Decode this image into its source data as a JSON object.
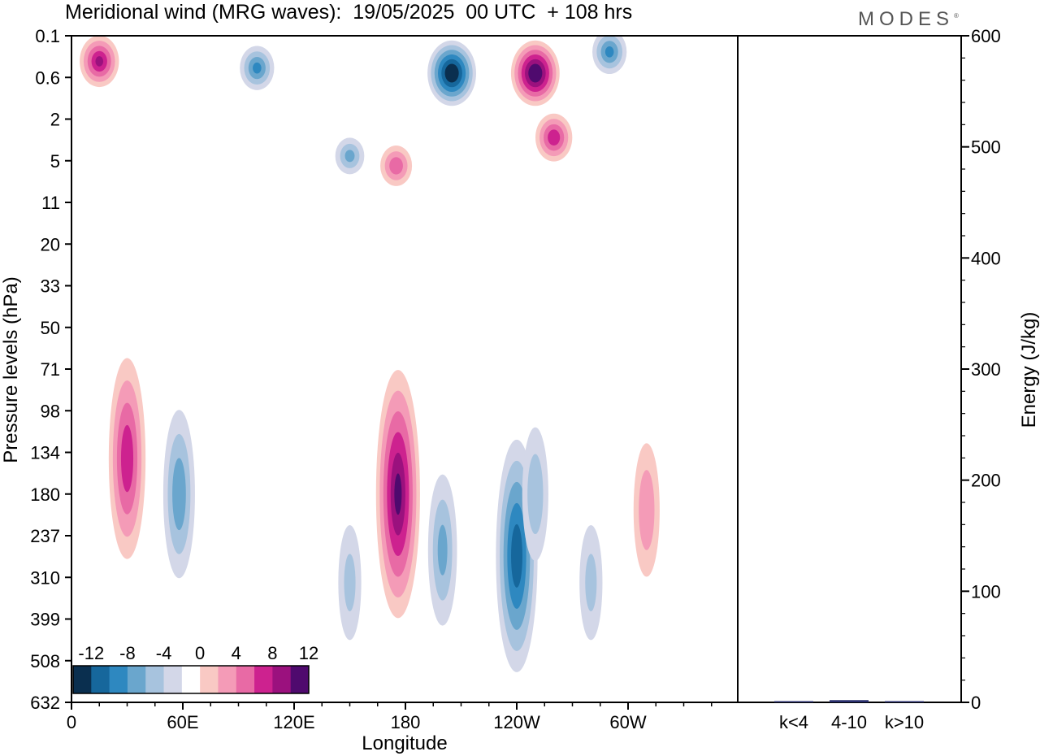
{
  "header": {
    "title": "Meridional wind (MRG waves):  19/05/2025  00 UTC  + 108 hrs",
    "logo": "MODES"
  },
  "colors": {
    "negative": [
      "#0a2f4f",
      "#16679c",
      "#2e88c0",
      "#6aa6cd",
      "#a7c3de",
      "#d3d7e8"
    ],
    "zero": "#ffffff",
    "positive": [
      "#f9c9c4",
      "#f49bb7",
      "#e86aa5",
      "#cd228f",
      "#9b117e",
      "#4f0a6e"
    ]
  },
  "chart_data": [
    {
      "type": "heatmap",
      "title": "Meridional wind (MRG waves):  19/05/2025  00 UTC  + 108 hrs",
      "xlabel": "Longitude",
      "ylabel": "Pressure levels (hPa)",
      "x_ticks": [
        "0",
        "60E",
        "120E",
        "180",
        "120W",
        "60W"
      ],
      "y_ticks": [
        "0.1",
        "0.6",
        "2",
        "5",
        "11",
        "20",
        "33",
        "50",
        "71",
        "98",
        "134",
        "180",
        "237",
        "310",
        "399",
        "508",
        "632"
      ],
      "colorbar": {
        "labels": [
          "-12",
          "-8",
          "-4",
          "0",
          "4",
          "8",
          "12"
        ],
        "levels": [
          -14,
          -12,
          -10,
          -8,
          -6,
          -4,
          -2,
          2,
          4,
          6,
          8,
          10,
          12,
          14
        ]
      },
      "features": [
        {
          "lon": 15,
          "plev": 0.3,
          "value": 10
        },
        {
          "lon": 100,
          "plev": 0.4,
          "value": -8
        },
        {
          "lon": 205,
          "plev": 0.5,
          "value": -14
        },
        {
          "lon": 250,
          "plev": 0.5,
          "value": 14
        },
        {
          "lon": 290,
          "plev": 0.2,
          "value": -8
        },
        {
          "lon": 260,
          "plev": 3,
          "value": 9
        },
        {
          "lon": 150,
          "plev": 4.5,
          "value": -6
        },
        {
          "lon": 175,
          "plev": 5.5,
          "value": 7
        },
        {
          "lon": 30,
          "plev": 140,
          "value": 9
        },
        {
          "lon": 58,
          "plev": 180,
          "value": -7
        },
        {
          "lon": 176,
          "plev": 180,
          "value": 12
        },
        {
          "lon": 200,
          "plev": 260,
          "value": -6
        },
        {
          "lon": 240,
          "plev": 270,
          "value": -11
        },
        {
          "lon": 250,
          "plev": 180,
          "value": -5
        },
        {
          "lon": 310,
          "plev": 200,
          "value": 5
        },
        {
          "lon": 280,
          "plev": 320,
          "value": -4
        },
        {
          "lon": 150,
          "plev": 320,
          "value": -4
        }
      ]
    },
    {
      "type": "bar",
      "categories": [
        "k<4",
        "4-10",
        "k>10"
      ],
      "values": [
        0.5,
        2,
        0.5
      ],
      "ylabel": "Energy (J/kg)",
      "ylim": [
        0,
        600
      ],
      "y_ticks": [
        "0",
        "100",
        "200",
        "300",
        "400",
        "500",
        "600"
      ]
    }
  ]
}
